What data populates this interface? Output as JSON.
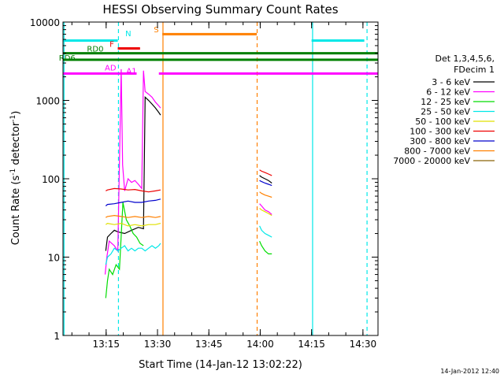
{
  "chart_data": {
    "type": "line",
    "title": "HESSI Observing Summary Count Rates",
    "xlabel": "Start Time (14-Jan-12 13:02:22)",
    "ylabel_main": "Count Rate (s",
    "ylabel_sup1": "-1",
    "ylabel_mid": " detector",
    "ylabel_sup2": "-1",
    "ylabel_end": ")",
    "yscale": "log",
    "ylim": [
      1,
      10000
    ],
    "xlim_minutes": [
      0,
      92
    ],
    "x_tick_labels": [
      {
        "label": "13:15",
        "minute": 12.6
      },
      {
        "label": "13:30",
        "minute": 27.6
      },
      {
        "label": "13:45",
        "minute": 42.6
      },
      {
        "label": "14:00",
        "minute": 57.6
      },
      {
        "label": "14:15",
        "minute": 72.6
      },
      {
        "label": "14:30",
        "minute": 87.6
      }
    ],
    "y_tick_labels": [
      {
        "label": "1",
        "value": 1
      },
      {
        "label": "10",
        "value": 10
      },
      {
        "label": "100",
        "value": 100
      },
      {
        "label": "1000",
        "value": 1000
      },
      {
        "label": "10000",
        "value": 10000
      }
    ],
    "legend": {
      "header1": "Det 1,3,4,5,6,",
      "header2": "FDecim 1",
      "entries": [
        {
          "label": "3 - 6 keV",
          "color": "#000000"
        },
        {
          "label": "6 - 12 keV",
          "color": "#ff00ff"
        },
        {
          "label": "12 - 25 keV",
          "color": "#00dd00"
        },
        {
          "label": "25 - 50 keV",
          "color": "#00e8e8"
        },
        {
          "label": "50 - 100 keV",
          "color": "#e0e000"
        },
        {
          "label": "100 - 300 keV",
          "color": "#ee0000"
        },
        {
          "label": "300 - 800 keV",
          "color": "#0000cc"
        },
        {
          "label": "800 - 7000 keV",
          "color": "#ff8000"
        },
        {
          "label": "7000 - 20000 keV",
          "color": "#8b6508"
        }
      ]
    },
    "flags": [
      {
        "label": "N",
        "color": "#00e8e8",
        "segments": [
          [
            0,
            16
          ],
          [
            72.6,
            88
          ]
        ],
        "y": 5800
      },
      {
        "label": "S",
        "color": "#ff8000",
        "segments": [
          [
            29,
            56.6
          ]
        ],
        "y": 7000
      },
      {
        "label": "F",
        "color": "#ee0000",
        "segments": [
          [
            16,
            22.5
          ]
        ],
        "y": 4600
      },
      {
        "label": "RD0",
        "color": "#008000",
        "segments": [
          [
            0,
            92
          ]
        ],
        "y": 4000
      },
      {
        "label": "RD6",
        "color": "#008000",
        "segments": [
          [
            0,
            92
          ]
        ],
        "y": 3300
      },
      {
        "label": "AD",
        "color": "#ff00ff",
        "segments": [
          [
            0,
            21.5
          ],
          [
            28,
            92
          ]
        ],
        "y": 2200
      }
    ],
    "flag_labels": [
      {
        "label": "N",
        "minute": 18.2,
        "y": 6600,
        "color": "#00e8e8"
      },
      {
        "label": "S",
        "minute": 26.5,
        "y": 7400,
        "color": "#ff8000"
      },
      {
        "label": "F",
        "minute": 13.6,
        "y": 4800,
        "color": "#ee0000"
      },
      {
        "label": "RD0",
        "minute": 7.0,
        "y": 4200,
        "color": "#008000"
      },
      {
        "label": "RD6",
        "minute": -1.2,
        "y": 3200,
        "color": "#008000"
      },
      {
        "label": "AD",
        "minute": 12.2,
        "y": 2400,
        "color": "#ff00ff"
      },
      {
        "label": "A1",
        "minute": 18.5,
        "y": 2200,
        "color": "#ff00ff"
      }
    ],
    "vlines": [
      {
        "minute": 0.3,
        "color": "#00e8e8",
        "style": "solid"
      },
      {
        "minute": 16.2,
        "color": "#00e8e8",
        "style": "dashed"
      },
      {
        "minute": 29.2,
        "color": "#ff8000",
        "style": "solid"
      },
      {
        "minute": 56.7,
        "color": "#ff8000",
        "style": "dashed"
      },
      {
        "minute": 72.9,
        "color": "#00e8e8",
        "style": "solid"
      },
      {
        "minute": 88.8,
        "color": "#00e8e8",
        "style": "dashed"
      }
    ],
    "series": [
      {
        "name": "3 - 6 keV",
        "color": "#000000",
        "segments": [
          [
            [
              12.5,
              12
            ],
            [
              13,
              18
            ],
            [
              14,
              20
            ],
            [
              15,
              22
            ],
            [
              16,
              21
            ],
            [
              18,
              20
            ],
            [
              20,
              22
            ],
            [
              22,
              24
            ],
            [
              23.5,
              23
            ],
            [
              24,
              1100
            ],
            [
              25,
              1000
            ],
            [
              26,
              900
            ],
            [
              27,
              800
            ],
            [
              28,
              700
            ],
            [
              28.5,
              650
            ]
          ],
          [
            [
              57.4,
              110
            ],
            [
              58,
              105
            ],
            [
              59,
              100
            ],
            [
              60,
              95
            ],
            [
              61,
              88
            ]
          ]
        ]
      },
      {
        "name": "6 - 12 keV",
        "color": "#ff00ff",
        "segments": [
          [
            [
              12.3,
              6
            ],
            [
              12.8,
              10
            ],
            [
              13.5,
              16
            ],
            [
              15,
              14
            ],
            [
              16,
              12
            ],
            [
              17,
              2500
            ],
            [
              17.4,
              150
            ],
            [
              18,
              70
            ],
            [
              19,
              100
            ],
            [
              20,
              90
            ],
            [
              21,
              95
            ],
            [
              22,
              85
            ],
            [
              23,
              75
            ],
            [
              23.5,
              2400
            ],
            [
              24,
              1300
            ],
            [
              25,
              1200
            ],
            [
              26,
              1100
            ],
            [
              27,
              950
            ],
            [
              28,
              850
            ],
            [
              28.5,
              800
            ]
          ],
          [
            [
              57.4,
              48
            ],
            [
              58,
              45
            ],
            [
              59,
              40
            ],
            [
              60,
              38
            ],
            [
              61,
              35
            ]
          ]
        ]
      },
      {
        "name": "12 - 25 keV",
        "color": "#00dd00",
        "segments": [
          [
            [
              12.5,
              3
            ],
            [
              13,
              5
            ],
            [
              13.5,
              7
            ],
            [
              14.5,
              6
            ],
            [
              15.5,
              8
            ],
            [
              16.5,
              7
            ],
            [
              17.5,
              50
            ],
            [
              18.5,
              30
            ],
            [
              19.5,
              25
            ],
            [
              20.5,
              20
            ],
            [
              21.5,
              18
            ],
            [
              22.5,
              15
            ],
            [
              23.5,
              14
            ]
          ],
          [
            [
              57.4,
              16
            ],
            [
              58,
              14
            ],
            [
              59,
              12
            ],
            [
              60,
              11
            ],
            [
              61,
              11
            ]
          ]
        ]
      },
      {
        "name": "25 - 50 keV",
        "color": "#00e8e8",
        "segments": [
          [
            [
              12.5,
              8
            ],
            [
              13,
              10
            ],
            [
              14,
              11
            ],
            [
              15,
              13
            ],
            [
              16,
              12
            ],
            [
              17,
              13
            ],
            [
              18,
              14
            ],
            [
              19,
              12
            ],
            [
              20,
              13
            ],
            [
              21,
              12
            ],
            [
              22,
              13
            ],
            [
              23,
              13
            ],
            [
              24,
              12
            ],
            [
              25,
              13
            ],
            [
              26,
              14
            ],
            [
              27,
              13
            ],
            [
              28,
              14
            ],
            [
              28.5,
              15
            ]
          ],
          [
            [
              57.4,
              25
            ],
            [
              58,
              22
            ],
            [
              59,
              20
            ],
            [
              60,
              19
            ],
            [
              61,
              18
            ]
          ]
        ]
      },
      {
        "name": "50 - 100 keV",
        "color": "#e0e000",
        "segments": [
          [
            [
              12.5,
              26
            ],
            [
              13,
              27
            ],
            [
              15,
              26
            ],
            [
              17,
              27
            ],
            [
              19,
              25
            ],
            [
              21,
              26
            ],
            [
              23,
              25
            ],
            [
              25,
              26
            ],
            [
              27,
              26
            ],
            [
              28.5,
              27
            ]
          ],
          [
            [
              57.4,
              42
            ],
            [
              58,
              40
            ],
            [
              59,
              38
            ],
            [
              60,
              36
            ],
            [
              61,
              34
            ]
          ]
        ]
      },
      {
        "name": "100 - 300 keV",
        "color": "#ee0000",
        "segments": [
          [
            [
              12.5,
              70
            ],
            [
              13,
              72
            ],
            [
              15,
              75
            ],
            [
              17,
              74
            ],
            [
              19,
              72
            ],
            [
              21,
              73
            ],
            [
              23,
              70
            ],
            [
              25,
              68
            ],
            [
              27,
              70
            ],
            [
              28.5,
              72
            ]
          ],
          [
            [
              57.4,
              130
            ],
            [
              58,
              125
            ],
            [
              59,
              120
            ],
            [
              60,
              115
            ],
            [
              61,
              110
            ]
          ]
        ]
      },
      {
        "name": "300 - 800 keV",
        "color": "#0000cc",
        "segments": [
          [
            [
              12.5,
              45
            ],
            [
              13,
              47
            ],
            [
              15,
              48
            ],
            [
              17,
              50
            ],
            [
              19,
              52
            ],
            [
              21,
              50
            ],
            [
              23,
              50
            ],
            [
              25,
              52
            ],
            [
              27,
              53
            ],
            [
              28.5,
              55
            ]
          ],
          [
            [
              57.4,
              95
            ],
            [
              58,
              92
            ],
            [
              59,
              88
            ],
            [
              60,
              85
            ],
            [
              61,
              82
            ]
          ]
        ]
      },
      {
        "name": "800 - 7000 keV",
        "color": "#ff8000",
        "segments": [
          [
            [
              12.5,
              32
            ],
            [
              13,
              33
            ],
            [
              15,
              34
            ],
            [
              17,
              33
            ],
            [
              19,
              32
            ],
            [
              21,
              33
            ],
            [
              23,
              32
            ],
            [
              25,
              33
            ],
            [
              27,
              32
            ],
            [
              28.5,
              33
            ]
          ],
          [
            [
              57.4,
              68
            ],
            [
              58,
              65
            ],
            [
              59,
              62
            ],
            [
              60,
              60
            ],
            [
              61,
              58
            ]
          ]
        ]
      },
      {
        "name": "7000 - 20000 keV",
        "color": "#8b6508",
        "segments": [
          [
            [
              12.5,
              1
            ],
            [
              12.6,
              1
            ]
          ],
          [
            [
              57.6,
              1
            ],
            [
              57.7,
              1
            ]
          ]
        ]
      }
    ]
  },
  "footer_date": "14-Jan-2012 12:40"
}
